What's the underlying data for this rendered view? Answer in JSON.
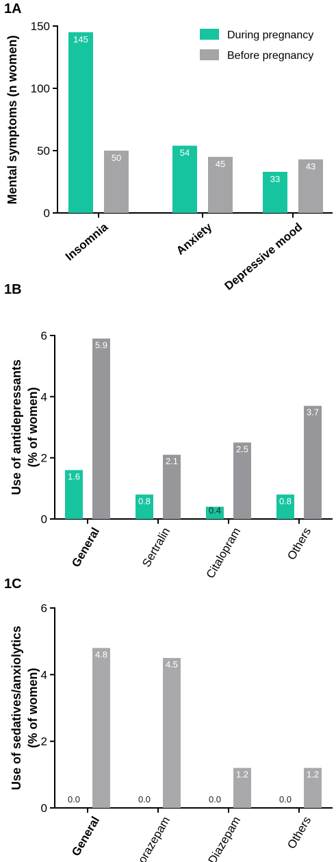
{
  "colors": {
    "during": "#17C4A0",
    "before_a": "#A5A5A8",
    "before_b": "#97979B",
    "before_c": "#A9A9AC"
  },
  "chart_data": [
    {
      "panel_label": "1A",
      "type": "bar",
      "ylabel": "Mental symptoms (n women)",
      "ylim": [
        0,
        150
      ],
      "yticks": [
        0,
        50,
        100,
        150
      ],
      "categories": [
        "Insomnia",
        "Anxiety",
        "Depressive mood"
      ],
      "category_bold": [
        true,
        true,
        true
      ],
      "series": [
        {
          "name": "During pregnancy",
          "values": [
            145,
            54,
            33
          ],
          "labels": [
            "145",
            "54",
            "33"
          ]
        },
        {
          "name": "Before pregnancy",
          "values": [
            50,
            45,
            43
          ],
          "labels": [
            "50",
            "45",
            "43"
          ]
        }
      ],
      "legend": "top-right"
    },
    {
      "panel_label": "1B",
      "type": "bar",
      "ylabel": [
        "Use of antidepressants",
        "(% of women)"
      ],
      "ylim": [
        0,
        6
      ],
      "yticks": [
        0,
        2,
        4,
        6
      ],
      "categories": [
        "General",
        "Sertralin",
        "Citalopram",
        "Others"
      ],
      "category_bold": [
        true,
        false,
        false,
        false
      ],
      "series": [
        {
          "values": [
            1.6,
            0.8,
            0.4,
            0.8
          ],
          "labels": [
            "1.6",
            "0.8",
            "0.4",
            "0.8"
          ]
        },
        {
          "values": [
            5.9,
            2.1,
            2.5,
            3.7
          ],
          "labels": [
            "5.9",
            "2.1",
            "2.5",
            "3.7"
          ]
        }
      ]
    },
    {
      "panel_label": "1C",
      "type": "bar",
      "ylabel": [
        "Use of sedatives/anxiolytics",
        "(% of women)"
      ],
      "ylim": [
        0,
        6
      ],
      "yticks": [
        0,
        2,
        4,
        6
      ],
      "categories": [
        "General",
        "Lorazepam",
        "Diazepam",
        "Others"
      ],
      "category_bold": [
        true,
        false,
        false,
        false
      ],
      "series": [
        {
          "values": [
            0.0,
            0.0,
            0.0,
            0.0
          ],
          "labels": [
            "0.0",
            "0.0",
            "0.0",
            "0.0"
          ]
        },
        {
          "values": [
            4.8,
            4.5,
            1.2,
            1.2
          ],
          "labels": [
            "4.8",
            "4.5",
            "1.2",
            "1.2"
          ]
        }
      ]
    }
  ]
}
